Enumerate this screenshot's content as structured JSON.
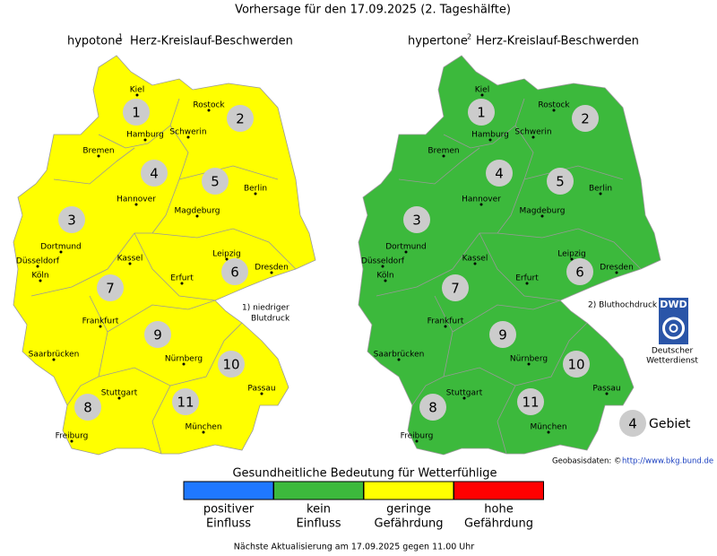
{
  "title": "Vorhersage für den 17.09.2025 (2. Tageshälfte)",
  "maps": [
    {
      "title": "hypotone",
      "note": "1",
      "subtitle": "Herz-Kreislauf-Beschwerden",
      "color": "#ffff00",
      "footnote": [
        "1) niedriger",
        "Blutdruck"
      ]
    },
    {
      "title": "hypertone",
      "note": "2",
      "subtitle": "Herz-Kreislauf-Beschwerden",
      "color": "#3cb93c",
      "footnote": [
        "2) Bluthochdruck"
      ]
    }
  ],
  "cities": [
    "Kiel",
    "Rostock",
    "Hamburg",
    "Schwerin",
    "Bremen",
    "Hannover",
    "Berlin",
    "Magdeburg",
    "Dortmund",
    "Düsseldorf",
    "Köln",
    "Kassel",
    "Leipzig",
    "Dresden",
    "Erfurt",
    "Frankfurt",
    "Saarbrücken",
    "Nürnberg",
    "Passau",
    "Stuttgart",
    "Freiburg",
    "München"
  ],
  "regions": [
    1,
    2,
    3,
    4,
    5,
    6,
    7,
    8,
    9,
    10,
    11
  ],
  "legend": {
    "title": "Gesundheitliche Bedeutung für Wetterfühlige",
    "items": [
      {
        "color": "#1f78ff",
        "label": [
          "positiver",
          "Einfluss"
        ]
      },
      {
        "color": "#3cb93c",
        "label": [
          "kein",
          "Einfluss"
        ]
      },
      {
        "color": "#ffff00",
        "label": [
          "geringe",
          "Gefährdung"
        ]
      },
      {
        "color": "#ff0000",
        "label": [
          "hohe",
          "Gefährdung"
        ]
      }
    ]
  },
  "key": {
    "value": 4,
    "label": "Gebiet"
  },
  "logo": {
    "abbr": "DWD",
    "name": [
      "Deutscher",
      "Wetterdienst"
    ]
  },
  "source": {
    "label": "Geobasisdaten: ©",
    "url": "http://www.bkg.bund.de"
  },
  "footer": "Nächste Aktualisierung am 17.09.2025 gegen 11.00 Uhr"
}
